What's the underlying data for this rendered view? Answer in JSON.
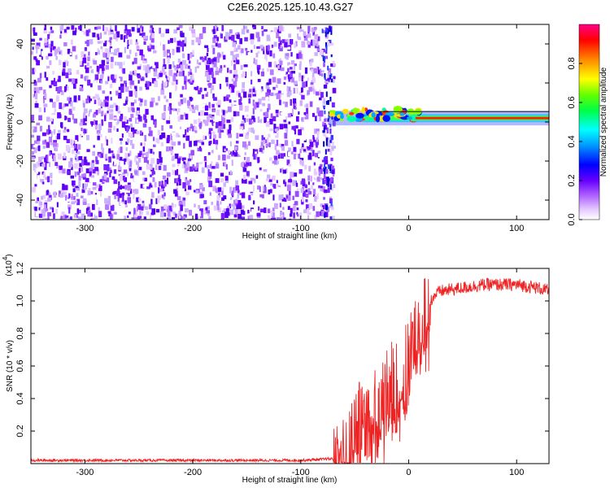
{
  "title": "C2E6.2025.125.10.43.G27",
  "chart_data": [
    {
      "type": "heatmap",
      "xlabel": "Height of straight line (km)",
      "ylabel": "Frequency (Hz)",
      "xlim": [
        -350,
        130
      ],
      "ylim": [
        -50,
        50
      ],
      "xticks": [
        -300,
        -200,
        -100,
        0,
        100
      ],
      "yticks": [
        -40,
        -20,
        0,
        20,
        40
      ],
      "colorbar": {
        "label": "Normalized spectral amplitude",
        "range": [
          0.0,
          1.0
        ],
        "ticks": [
          0.0,
          0.2,
          0.4,
          0.6,
          0.8
        ],
        "tick_labels": [
          "0.0",
          "0.2",
          "0.4",
          "0.6",
          "0.8"
        ],
        "colors": [
          "#ffffff",
          "#cc99ff",
          "#8800ff",
          "#0000ff",
          "#00ffff",
          "#00ff00",
          "#ffff00",
          "#ff8800",
          "#ff0000",
          "#ff0088"
        ]
      },
      "noise_region": {
        "x_range": [
          -350,
          -73
        ],
        "freq_range": [
          -50,
          50
        ],
        "typical_amplitude": [
          0.05,
          0.3
        ]
      },
      "signal_band": {
        "x_range": [
          -73,
          130
        ],
        "center_freq_hz": 2,
        "amplitude_peak": 0.9
      }
    },
    {
      "type": "line",
      "xlabel": "Height of straight line (km)",
      "ylabel": "SNR (10 * v/v)",
      "y_multiplier_label": "(x10",
      "y_multiplier_exp": "4",
      "y_multiplier_close": ")",
      "xlim": [
        -350,
        130
      ],
      "ylim": [
        0,
        1.2
      ],
      "xticks": [
        -300,
        -200,
        -100,
        0,
        100
      ],
      "yticks": [
        0.2,
        0.4,
        0.6,
        0.8,
        1.0,
        1.2
      ],
      "ytick_labels": [
        "0.2",
        "0.4",
        "0.6",
        "0.8",
        "1.0",
        "1.2"
      ],
      "series": [
        {
          "color": "#ee2222",
          "x": [
            -350,
            -200,
            -100,
            -70,
            -60,
            -55,
            -50,
            -45,
            -40,
            -35,
            -30,
            -25,
            -20,
            -15,
            -10,
            -5,
            0,
            5,
            10,
            15,
            20,
            25,
            30,
            40,
            50,
            60,
            70,
            80,
            90,
            100,
            110,
            120,
            130
          ],
          "y": [
            0.02,
            0.02,
            0.02,
            0.03,
            0.05,
            0.1,
            0.22,
            0.28,
            0.3,
            0.33,
            0.36,
            0.4,
            0.44,
            0.48,
            0.52,
            0.58,
            0.65,
            0.8,
            0.92,
            0.95,
            1.0,
            1.04,
            1.06,
            1.07,
            1.08,
            1.09,
            1.1,
            1.1,
            1.1,
            1.1,
            1.09,
            1.08,
            1.06
          ]
        }
      ]
    }
  ]
}
